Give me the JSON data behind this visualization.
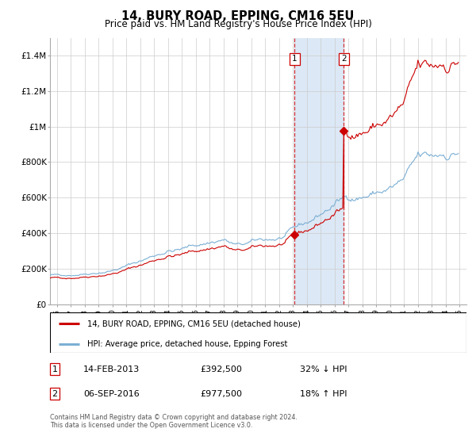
{
  "title": "14, BURY ROAD, EPPING, CM16 5EU",
  "subtitle": "Price paid vs. HM Land Registry's House Price Index (HPI)",
  "xlim_start": 1995.5,
  "xlim_end": 2025.5,
  "ylim": [
    0,
    1500000
  ],
  "yticks": [
    0,
    200000,
    400000,
    600000,
    800000,
    1000000,
    1200000,
    1400000
  ],
  "ytick_labels": [
    "£0",
    "£200K",
    "£400K",
    "£600K",
    "£800K",
    "£1M",
    "£1.2M",
    "£1.4M"
  ],
  "xtick_years": [
    1996,
    1997,
    1998,
    1999,
    2000,
    2001,
    2002,
    2003,
    2004,
    2005,
    2006,
    2007,
    2008,
    2009,
    2010,
    2011,
    2012,
    2013,
    2014,
    2015,
    2016,
    2017,
    2018,
    2019,
    2020,
    2021,
    2022,
    2023,
    2024,
    2025
  ],
  "sale1_x": 2013.12,
  "sale1_y": 392500,
  "sale2_x": 2016.67,
  "sale2_y": 977500,
  "shade_color": "#dce8f5",
  "red_line_color": "#cc0000",
  "blue_line_color": "#7bafd4",
  "grid_color": "#cccccc",
  "legend1_label": "14, BURY ROAD, EPPING, CM16 5EU (detached house)",
  "legend2_label": "HPI: Average price, detached house, Epping Forest",
  "table_row1": [
    "1",
    "14-FEB-2013",
    "£392,500",
    "32% ↓ HPI"
  ],
  "table_row2": [
    "2",
    "06-SEP-2016",
    "£977,500",
    "18% ↑ HPI"
  ],
  "footnote": "Contains HM Land Registry data © Crown copyright and database right 2024.\nThis data is licensed under the Open Government Licence v3.0."
}
